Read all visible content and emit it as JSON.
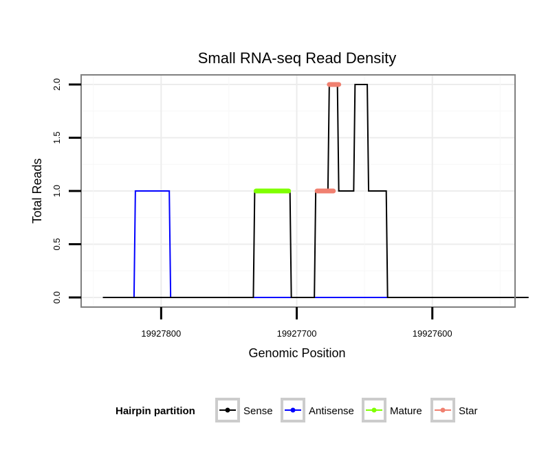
{
  "chart_data": {
    "type": "line",
    "title": "Small RNA-seq Read Density",
    "xlabel": "Genomic Position",
    "ylabel": "Total Reads",
    "xlim": [
      19927859,
      19927539
    ],
    "x_reversed": true,
    "ylim": [
      -0.09,
      2.09
    ],
    "grid": true,
    "x_ticks": [
      19927800,
      19927700,
      19927600
    ],
    "x_tick_labels": [
      "19927800",
      "19927700",
      "19927600"
    ],
    "y_ticks": [
      0.0,
      0.5,
      1.0,
      1.5,
      2.0
    ],
    "y_tick_labels": [
      "0.0",
      "0.5",
      "1.0",
      "1.5",
      "2.0"
    ],
    "legend": {
      "title": "Hairpin partition",
      "position": "bottom",
      "entries": [
        {
          "label": "Sense",
          "color": "#000000"
        },
        {
          "label": "Antisense",
          "color": "#0000ff"
        },
        {
          "label": "Mature",
          "color": "#7fff00"
        },
        {
          "label": "Star",
          "color": "#f08070"
        }
      ]
    },
    "series": [
      {
        "name": "Sense",
        "color": "#000000",
        "style": "line",
        "x": [
          19927843,
          19927732,
          19927731,
          19927705,
          19927704,
          19927687,
          19927686,
          19927677,
          19927676,
          19927670,
          19927669,
          19927658,
          19927657,
          19927648,
          19927647,
          19927634,
          19927633,
          19927529
        ],
        "y": [
          0,
          0,
          1,
          1,
          0,
          0,
          1,
          1,
          2,
          2,
          1,
          1,
          2,
          2,
          1,
          1,
          0,
          0
        ]
      },
      {
        "name": "Antisense",
        "color": "#0000ff",
        "style": "line",
        "x": [
          19927820,
          19927819,
          19927794,
          19927793,
          19927633
        ],
        "y": [
          0,
          1,
          1,
          0,
          0
        ]
      },
      {
        "name": "Mature",
        "color": "#7fff00",
        "style": "points",
        "x": [
          19927730,
          19927706
        ],
        "y": [
          1,
          1
        ]
      },
      {
        "name": "Star",
        "color": "#f08070",
        "style": "points",
        "segments": [
          {
            "x": [
              19927685,
              19927673
            ],
            "y": [
              1,
              1
            ]
          },
          {
            "x": [
              19927676,
              19927669
            ],
            "y": [
              2,
              2
            ]
          }
        ]
      }
    ]
  }
}
